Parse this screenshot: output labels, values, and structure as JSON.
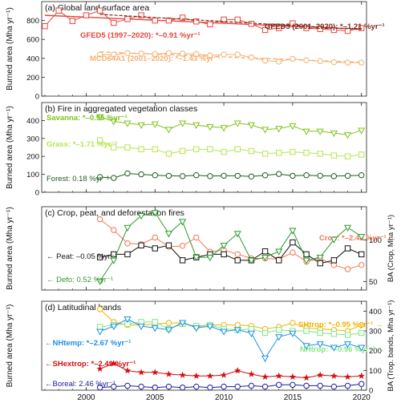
{
  "figure": {
    "years_min": 1997,
    "years_max": 2020,
    "x_ticks": [
      2000,
      2005,
      2010,
      2015,
      2020
    ],
    "x_tick_labels": [
      "2000",
      "2005",
      "2010",
      "2015",
      "2020"
    ],
    "left_ylabel": "Burned area (Mha yr⁻¹)"
  },
  "chart_data": [
    {
      "type": "line",
      "title": "(a) Global land surface area",
      "ylabel": "Burned area (Mha yr⁻¹)",
      "ylim": [
        0,
        1000
      ],
      "yticks": [
        0,
        200,
        400,
        600,
        800
      ],
      "series": [
        {
          "name": "GFED5 (1997–2020): *–0.91 %yr⁻¹",
          "color": "#e8453c",
          "marker": "square",
          "trend": true,
          "x": [
            1997,
            1998,
            1999,
            2000,
            2001,
            2002,
            2003,
            2004,
            2005,
            2006,
            2007,
            2008,
            2009,
            2010,
            2011,
            2012,
            2013,
            2014,
            2015,
            2016,
            2017,
            2018,
            2019,
            2020
          ],
          "values": [
            740,
            905,
            795,
            855,
            905,
            775,
            815,
            855,
            800,
            800,
            830,
            790,
            760,
            810,
            810,
            765,
            700,
            720,
            770,
            720,
            710,
            700,
            690,
            720
          ]
        },
        {
          "name": "GFED5 (2001–2020): *–1.21 %yr⁻¹",
          "color": "#7a2a1a",
          "marker": "none",
          "trend": true,
          "dashed": true,
          "x": [
            2001,
            2020
          ],
          "values": [
            865,
            705
          ]
        },
        {
          "name": "MCD64A1 (2001–2020): *–1.43 %yr⁻¹",
          "color": "#f5b070",
          "marker": "circle",
          "trend": true,
          "x": [
            2001,
            2002,
            2003,
            2004,
            2005,
            2006,
            2007,
            2008,
            2009,
            2010,
            2011,
            2012,
            2013,
            2014,
            2015,
            2016,
            2017,
            2018,
            2019,
            2020
          ],
          "values": [
            440,
            440,
            455,
            450,
            445,
            455,
            450,
            445,
            430,
            440,
            440,
            410,
            375,
            365,
            395,
            380,
            370,
            360,
            355,
            355
          ]
        }
      ]
    },
    {
      "type": "line",
      "title": "(b) Fire in aggregated vegetation classes",
      "ylabel": "Burned area (Mha yr⁻¹)",
      "ylim": [
        0,
        500
      ],
      "yticks": [
        0,
        100,
        200,
        300,
        400
      ],
      "series": [
        {
          "name": "Savanna: *–0.95 %yr⁻¹",
          "color": "#7fc31c",
          "marker": "triangle-down",
          "x": [
            2001,
            2002,
            2003,
            2004,
            2005,
            2006,
            2007,
            2008,
            2009,
            2010,
            2011,
            2012,
            2013,
            2014,
            2015,
            2016,
            2017,
            2018,
            2019,
            2020
          ],
          "values": [
            420,
            395,
            385,
            375,
            380,
            350,
            385,
            375,
            365,
            360,
            385,
            375,
            350,
            355,
            370,
            340,
            340,
            330,
            320,
            345
          ]
        },
        {
          "name": "Grass: *–1.71 %yr⁻¹",
          "color": "#b5e64d",
          "marker": "square",
          "x": [
            2001,
            2002,
            2003,
            2004,
            2005,
            2006,
            2007,
            2008,
            2009,
            2010,
            2011,
            2012,
            2013,
            2014,
            2015,
            2016,
            2017,
            2018,
            2019,
            2020
          ],
          "values": [
            290,
            250,
            250,
            240,
            240,
            215,
            230,
            240,
            240,
            225,
            240,
            230,
            215,
            220,
            225,
            220,
            215,
            205,
            200,
            210
          ]
        },
        {
          "name": "Forest: 0.18 %yr⁻¹",
          "color": "#1d5f1d",
          "marker": "circle",
          "x": [
            2001,
            2002,
            2003,
            2004,
            2005,
            2006,
            2007,
            2008,
            2009,
            2010,
            2011,
            2012,
            2013,
            2014,
            2015,
            2016,
            2017,
            2018,
            2019,
            2020
          ],
          "values": [
            85,
            80,
            105,
            100,
            95,
            92,
            90,
            95,
            90,
            92,
            92,
            88,
            95,
            102,
            92,
            95,
            92,
            90,
            92,
            95
          ]
        }
      ]
    },
    {
      "type": "line",
      "title": "(c) Crop, peat, and deforestation fires",
      "ylabel": "Burned area (Mha yr⁻¹)",
      "ylabel_right": "BA (Crop, Mha yr⁻¹)",
      "yticks_right": [
        50,
        100
      ],
      "series": [
        {
          "name": "Crop: *–2.48 %yr⁻¹ →",
          "color": "#f07850",
          "marker": "circle",
          "axis": "right",
          "x": [
            2001,
            2002,
            2003,
            2004,
            2005,
            2006,
            2007,
            2008,
            2009,
            2010,
            2011,
            2012,
            2013,
            2014,
            2015,
            2016,
            2017,
            2018,
            2019,
            2020
          ],
          "values": [
            125,
            112,
            96,
            95,
            103,
            92,
            93,
            103,
            86,
            88,
            83,
            78,
            78,
            77,
            85,
            74,
            78,
            70,
            65,
            70
          ]
        },
        {
          "name": "← Peat: –0.05 %yr⁻¹",
          "color": "#111111",
          "marker": "square",
          "x": [
            2001,
            2002,
            2003,
            2004,
            2005,
            2006,
            2007,
            2008,
            2009,
            2010,
            2011,
            2012,
            2013,
            2014,
            2015,
            2016,
            2017,
            2018,
            2019,
            2020
          ],
          "values": [
            0.55,
            0.6,
            0.6,
            0.75,
            0.7,
            0.75,
            0.5,
            0.55,
            0.6,
            0.6,
            0.5,
            0.5,
            0.65,
            0.5,
            0.8,
            0.6,
            0.45,
            0.5,
            0.7,
            0.6
          ]
        },
        {
          "name": "← Defo: 0.52 %yr⁻¹",
          "color": "#2e9a2e",
          "marker": "triangle-down",
          "x": [
            2001,
            2002,
            2003,
            2004,
            2005,
            2006,
            2007,
            2008,
            2009,
            2010,
            2011,
            2012,
            2013,
            2014,
            2015,
            2016,
            2017,
            2018,
            2019,
            2020
          ],
          "values": [
            0.15,
            0.5,
            1.05,
            1.25,
            1.3,
            0.95,
            1.15,
            0.55,
            0.55,
            0.75,
            0.95,
            0.5,
            0.55,
            0.65,
            1.0,
            0.5,
            0.55,
            0.85,
            1.05,
            0.9
          ]
        }
      ]
    },
    {
      "type": "line",
      "title": "(d) Latitudinal bands",
      "ylabel": "Burned area (Mha yr⁻¹)",
      "ylabel_right": "BA (Trop. bands, Mha yr⁻¹)",
      "yticks_right": [
        0,
        100,
        200,
        300,
        400
      ],
      "series": [
        {
          "name": "SHtrop: *–0.95 %yr⁻¹ →",
          "color": "#f0b400",
          "marker": "circle",
          "axis": "right",
          "x": [
            2001,
            2002,
            2003,
            2004,
            2005,
            2006,
            2007,
            2008,
            2009,
            2010,
            2011,
            2012,
            2013,
            2014,
            2015,
            2016,
            2017,
            2018,
            2019,
            2020
          ],
          "values": [
            410,
            345,
            330,
            330,
            335,
            340,
            340,
            320,
            330,
            330,
            330,
            325,
            310,
            320,
            340,
            315,
            310,
            305,
            300,
            330
          ]
        },
        {
          "name": "NHtrop: *–0.96 %yr⁻¹ →",
          "color": "#7ee87e",
          "marker": "square",
          "axis": "right",
          "x": [
            2001,
            2002,
            2003,
            2004,
            2005,
            2006,
            2007,
            2008,
            2009,
            2010,
            2011,
            2012,
            2013,
            2014,
            2015,
            2016,
            2017,
            2018,
            2019,
            2020
          ],
          "values": [
            320,
            330,
            335,
            345,
            345,
            310,
            335,
            325,
            330,
            310,
            305,
            310,
            290,
            305,
            300,
            300,
            290,
            285,
            280,
            290
          ]
        },
        {
          "name": "←NHtemp: *–2.67 %yr⁻¹",
          "color": "#1e90e8",
          "marker": "triangle-down",
          "x": [
            2001,
            2002,
            2003,
            2004,
            2005,
            2006,
            2007,
            2008,
            2009,
            2010,
            2011,
            2012,
            2013,
            2014,
            2015,
            2016,
            2017,
            2018,
            2019,
            2020
          ],
          "values": [
            3.3,
            3.6,
            4.0,
            3.6,
            3.5,
            3.4,
            3.8,
            3.5,
            3.6,
            3.3,
            3.4,
            3.2,
            1.8,
            3.0,
            3.2,
            2.5,
            2.6,
            2.4,
            2.6,
            2.4
          ]
        },
        {
          "name": "←SHextrop: *–2.49 %yr⁻¹",
          "color": "#d01010",
          "marker": "star",
          "x": [
            2001,
            2002,
            2003,
            2004,
            2005,
            2006,
            2007,
            2008,
            2009,
            2010,
            2011,
            2012,
            2013,
            2014,
            2015,
            2016,
            2017,
            2018,
            2019,
            2020
          ],
          "values": [
            1.2,
            1.5,
            1.1,
            1.0,
            1.0,
            0.9,
            0.85,
            0.8,
            0.8,
            0.85,
            1.1,
            0.9,
            0.75,
            0.8,
            0.75,
            0.7,
            0.85,
            0.8,
            0.75,
            0.8
          ]
        },
        {
          "name": "←Boreal: 2.46 %yr⁻¹",
          "color": "#1a1aa0",
          "marker": "circle",
          "x": [
            2001,
            2002,
            2003,
            2004,
            2005,
            2006,
            2007,
            2008,
            2009,
            2010,
            2011,
            2012,
            2013,
            2014,
            2015,
            2016,
            2017,
            2018,
            2019,
            2020
          ],
          "values": [
            0.15,
            0.2,
            0.25,
            0.2,
            0.15,
            0.2,
            0.15,
            0.2,
            0.15,
            0.2,
            0.2,
            0.25,
            0.2,
            0.3,
            0.3,
            0.25,
            0.25,
            0.2,
            0.25,
            0.35
          ]
        }
      ]
    }
  ]
}
